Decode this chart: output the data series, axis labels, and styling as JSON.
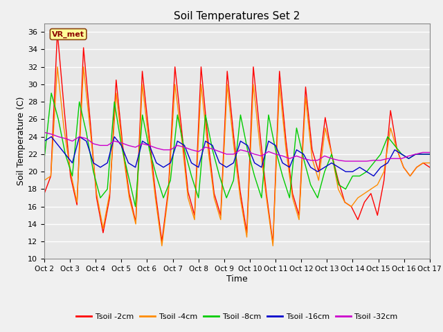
{
  "title": "Soil Temperatures Set 2",
  "xlabel": "Time",
  "ylabel": "Soil Temperature (C)",
  "annotation": "VR_met",
  "ylim": [
    10,
    37
  ],
  "yticks": [
    10,
    12,
    14,
    16,
    18,
    20,
    22,
    24,
    26,
    28,
    30,
    32,
    34,
    36
  ],
  "xtick_labels": [
    "Oct 2",
    "Oct 3",
    "Oct 4",
    "Oct 5",
    "Oct 6",
    "Oct 7",
    "Oct 8",
    "Oct 9",
    "Oct 10",
    "Oct 11",
    "Oct 12",
    "Oct 13",
    "Oct 14",
    "Oct 15",
    "Oct 16",
    "Oct 17"
  ],
  "colors": {
    "Tsoil -2cm": "#ff0000",
    "Tsoil -4cm": "#ff8c00",
    "Tsoil -8cm": "#00cc00",
    "Tsoil -16cm": "#0000cc",
    "Tsoil -32cm": "#cc00cc"
  },
  "background_color": "#e8e8e8",
  "grid_color": "#ffffff",
  "t2cm": [
    17.5,
    19.5,
    36.0,
    27.5,
    19.5,
    16.2,
    34.2,
    26.0,
    17.0,
    13.0,
    17.0,
    30.5,
    23.0,
    17.5,
    14.2,
    31.5,
    24.5,
    17.7,
    12.0,
    18.0,
    32.0,
    25.0,
    17.7,
    15.0,
    32.0,
    24.0,
    17.5,
    15.0,
    31.5,
    24.0,
    17.7,
    13.0,
    32.0,
    24.5,
    17.5,
    11.8,
    31.5,
    23.5,
    17.5,
    15.0,
    29.7,
    22.5,
    20.0,
    26.2,
    22.0,
    19.0,
    16.5,
    16.0,
    14.5,
    16.5,
    17.5,
    15.0,
    19.0,
    27.0,
    22.5,
    20.5,
    19.5,
    20.5,
    21.0,
    20.5
  ],
  "t4cm": [
    19.0,
    19.5,
    32.0,
    25.0,
    20.0,
    16.5,
    32.0,
    25.0,
    17.5,
    13.5,
    17.5,
    29.0,
    22.5,
    17.0,
    14.0,
    30.0,
    23.5,
    17.0,
    11.5,
    17.5,
    30.0,
    24.0,
    17.0,
    14.5,
    30.0,
    23.0,
    17.0,
    14.5,
    30.0,
    23.0,
    17.0,
    12.5,
    30.0,
    23.0,
    17.0,
    11.5,
    30.0,
    22.5,
    17.0,
    14.5,
    28.5,
    21.5,
    19.0,
    25.0,
    22.0,
    18.0,
    16.5,
    16.0,
    17.0,
    17.5,
    18.0,
    18.5,
    20.0,
    25.0,
    22.5,
    20.5,
    19.5,
    20.5,
    21.0,
    21.0
  ],
  "t8cm": [
    21.5,
    29.0,
    26.0,
    22.0,
    19.5,
    28.0,
    24.5,
    20.0,
    17.0,
    18.0,
    28.0,
    23.0,
    19.5,
    16.0,
    26.5,
    22.5,
    19.5,
    17.0,
    19.0,
    26.5,
    22.5,
    19.5,
    17.0,
    26.5,
    22.5,
    19.5,
    17.0,
    19.0,
    26.5,
    22.5,
    19.5,
    17.0,
    26.5,
    22.5,
    19.5,
    17.0,
    25.0,
    21.5,
    18.5,
    17.0,
    20.0,
    22.0,
    18.5,
    18.0,
    19.5,
    19.5,
    20.0,
    21.0,
    22.0,
    24.0,
    23.0,
    22.0,
    21.5,
    22.0,
    22.0,
    22.0
  ],
  "t16cm": [
    23.5,
    24.0,
    23.0,
    22.0,
    21.0,
    24.0,
    23.5,
    21.0,
    20.5,
    21.0,
    24.0,
    23.0,
    21.0,
    20.5,
    23.5,
    23.0,
    21.0,
    20.5,
    21.0,
    23.5,
    23.0,
    21.0,
    20.5,
    23.5,
    23.0,
    21.0,
    20.5,
    21.0,
    23.5,
    23.0,
    21.0,
    20.5,
    23.5,
    23.0,
    21.0,
    20.5,
    22.5,
    22.0,
    20.5,
    20.0,
    20.5,
    21.0,
    20.5,
    20.0,
    20.0,
    20.5,
    20.0,
    19.5,
    20.5,
    21.0,
    22.5,
    22.0,
    21.5,
    22.0,
    22.0,
    22.0
  ],
  "t32cm": [
    24.5,
    24.3,
    24.0,
    23.8,
    23.5,
    24.0,
    23.8,
    23.2,
    23.0,
    23.0,
    23.5,
    23.3,
    23.0,
    22.8,
    23.2,
    23.0,
    22.7,
    22.5,
    22.5,
    23.0,
    22.8,
    22.5,
    22.3,
    22.8,
    22.6,
    22.3,
    22.0,
    22.0,
    22.5,
    22.3,
    22.0,
    21.8,
    22.3,
    22.0,
    21.8,
    21.5,
    21.8,
    21.5,
    21.3,
    21.3,
    21.8,
    21.5,
    21.3,
    21.2,
    21.2,
    21.2,
    21.2,
    21.3,
    21.3,
    21.5,
    21.5,
    21.5,
    21.8,
    22.0,
    22.2,
    22.2
  ]
}
